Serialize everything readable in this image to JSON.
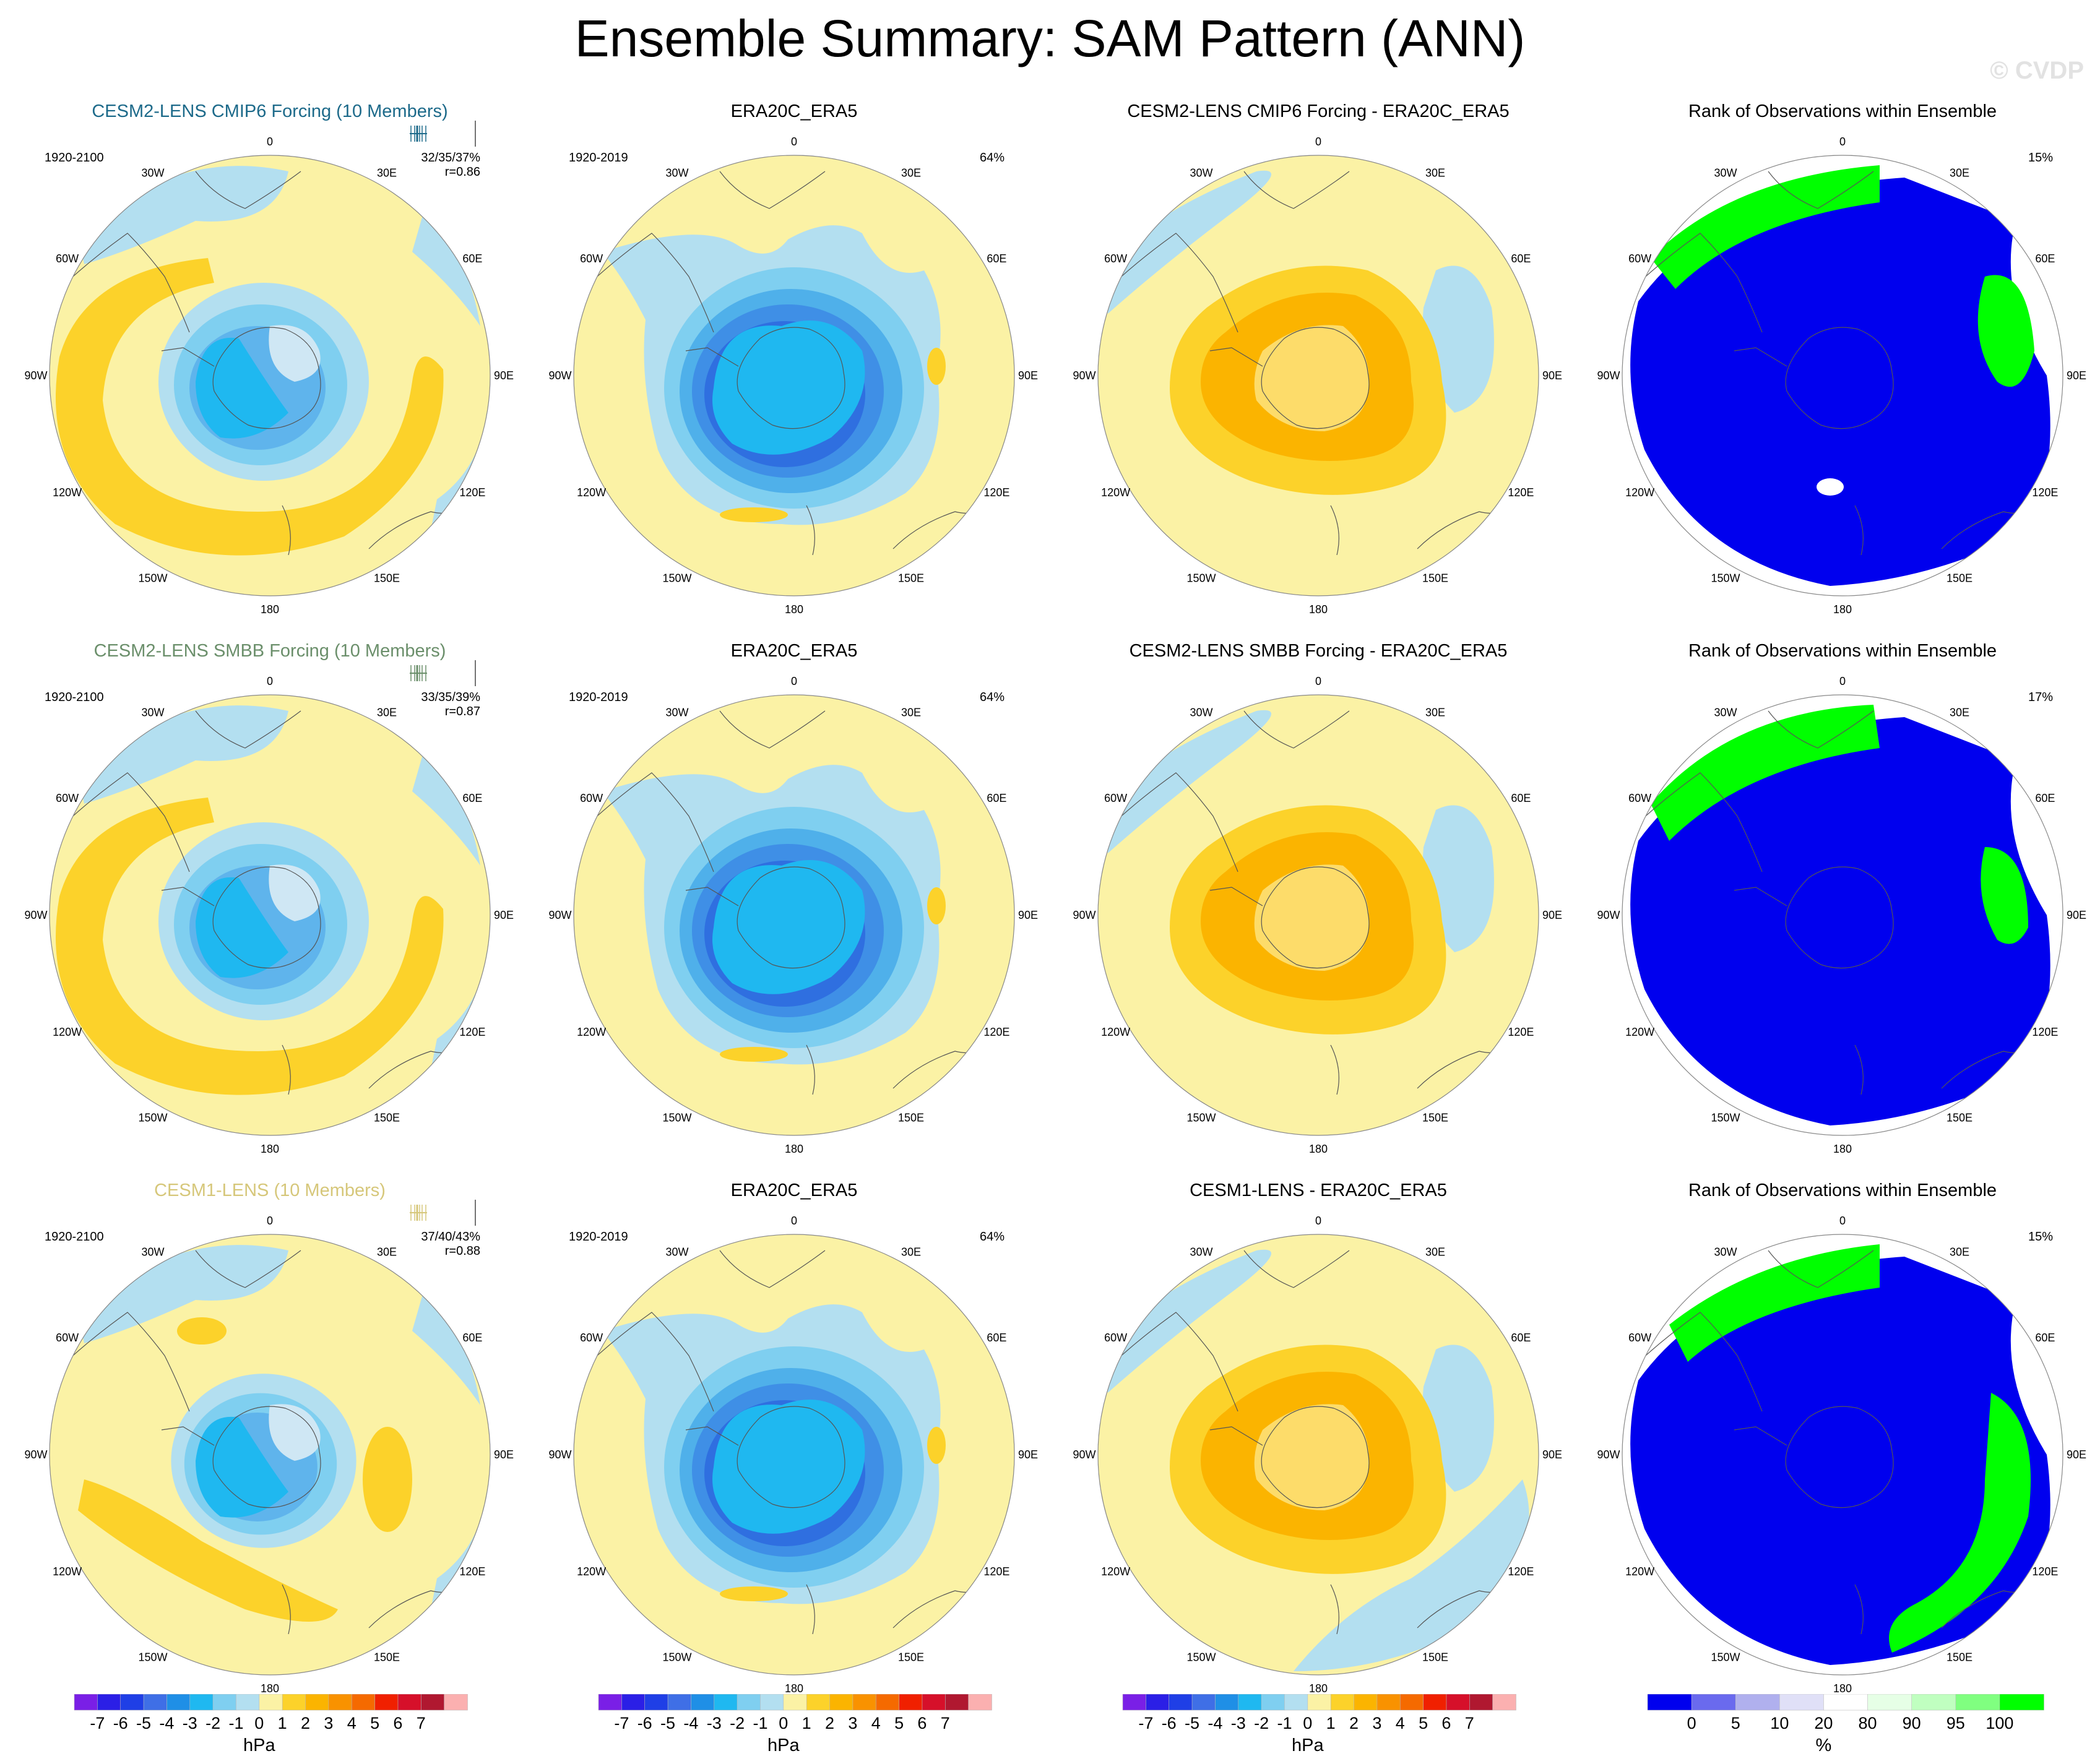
{
  "page": {
    "title": "Ensemble Summary: SAM Pattern (ANN)",
    "copyright": "© CVDP"
  },
  "colors": {
    "ocean_fill": "#fbf2a5",
    "rank_blue": "#0000ee",
    "rank_green": "#00ff00",
    "ens1_title": "#1d6a8a",
    "ens2_title": "#6b8f6b",
    "ens3_title": "#d6c77a"
  },
  "chart_data": [
    {
      "type": "heatmap",
      "row": 0,
      "col": 0,
      "title": "CESM2-LENS CMIP6 Forcing (10 Members)",
      "title_color": "#1d6a8a",
      "period": "1920-2100",
      "stat_line1": "32/35/37%",
      "stat_line2": "r=0.86",
      "kind": "ensemble"
    },
    {
      "type": "heatmap",
      "row": 0,
      "col": 1,
      "title": "ERA20C_ERA5",
      "period": "1920-2019",
      "stat_line1": "64%",
      "kind": "obs"
    },
    {
      "type": "heatmap",
      "row": 0,
      "col": 2,
      "title": "CESM2-LENS CMIP6 Forcing - ERA20C_ERA5",
      "kind": "diff"
    },
    {
      "type": "heatmap",
      "row": 0,
      "col": 3,
      "title": "Rank of Observations within Ensemble",
      "stat_line1": "15%",
      "kind": "rank"
    },
    {
      "type": "heatmap",
      "row": 1,
      "col": 0,
      "title": "CESM2-LENS SMBB Forcing (10 Members)",
      "title_color": "#6b8f6b",
      "period": "1920-2100",
      "stat_line1": "33/35/39%",
      "stat_line2": "r=0.87",
      "kind": "ensemble"
    },
    {
      "type": "heatmap",
      "row": 1,
      "col": 1,
      "title": "ERA20C_ERA5",
      "period": "1920-2019",
      "stat_line1": "64%",
      "kind": "obs"
    },
    {
      "type": "heatmap",
      "row": 1,
      "col": 2,
      "title": "CESM2-LENS SMBB Forcing - ERA20C_ERA5",
      "kind": "diff"
    },
    {
      "type": "heatmap",
      "row": 1,
      "col": 3,
      "title": "Rank of Observations within Ensemble",
      "stat_line1": "17%",
      "kind": "rank"
    },
    {
      "type": "heatmap",
      "row": 2,
      "col": 0,
      "title": "CESM1-LENS (10 Members)",
      "title_color": "#d6c77a",
      "period": "1920-2100",
      "stat_line1": "37/40/43%",
      "stat_line2": "r=0.88",
      "kind": "ensemble"
    },
    {
      "type": "heatmap",
      "row": 2,
      "col": 1,
      "title": "ERA20C_ERA5",
      "period": "1920-2019",
      "stat_line1": "64%",
      "kind": "obs"
    },
    {
      "type": "heatmap",
      "row": 2,
      "col": 2,
      "title": "CESM1-LENS - ERA20C_ERA5",
      "kind": "diff"
    },
    {
      "type": "heatmap",
      "row": 2,
      "col": 3,
      "title": "Rank of Observations within Ensemble",
      "stat_line1": "15%",
      "kind": "rank"
    }
  ],
  "lon_labels": [
    "0",
    "30E",
    "60E",
    "90E",
    "120E",
    "150E",
    "180",
    "150W",
    "120W",
    "90W",
    "60W",
    "30W"
  ],
  "colorbars": {
    "hpa": {
      "unit": "hPa",
      "colors": [
        "#7a1fe6",
        "#2b1fe6",
        "#1f3fe6",
        "#3f6fe6",
        "#1f8fe6",
        "#1fb8f0",
        "#7fcff0",
        "#b3dff0",
        "#fbf2a5",
        "#fcd22a",
        "#fbb400",
        "#f99200",
        "#f56a00",
        "#f02000",
        "#d6102a",
        "#b01830",
        "#fbb0b0"
      ],
      "ticks": [
        "-7",
        "-6",
        "-5",
        "-4",
        "-3",
        "-2",
        "-1",
        "0",
        "1",
        "2",
        "3",
        "4",
        "5",
        "6",
        "7"
      ]
    },
    "pct": {
      "unit": "%",
      "colors": [
        "#0000ee",
        "#6a6aee",
        "#b0b0ee",
        "#e0e0f7",
        "#ffffff",
        "#e6ffe6",
        "#c0ffc0",
        "#80ff80",
        "#00ff00"
      ],
      "ticks": [
        "0",
        "5",
        "10",
        "20",
        "80",
        "90",
        "95",
        "100"
      ]
    }
  }
}
